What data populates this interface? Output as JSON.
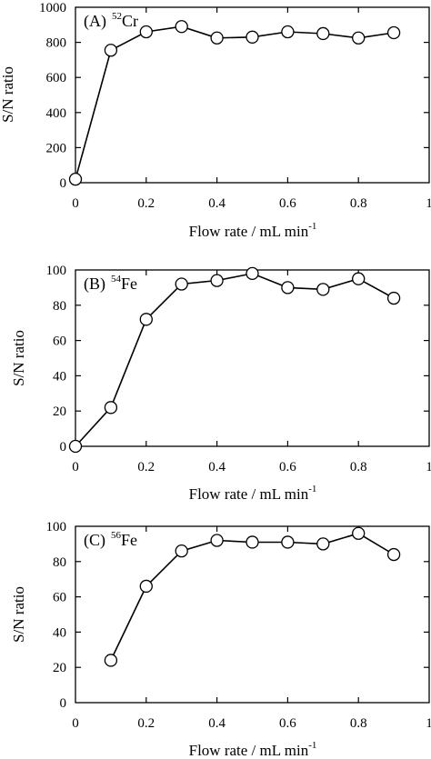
{
  "chart_data": [
    {
      "type": "line",
      "panel_label": "(A)",
      "isotope_mass": "52",
      "element": "Cr",
      "xlabel": "Flow rate  / mL min",
      "xlabel_exponent": "-1",
      "ylabel": "S/N ratio",
      "xlim": [
        0,
        1
      ],
      "ylim": [
        0,
        1000
      ],
      "x_ticks": [
        "0",
        "0.2",
        "0.4",
        "0.6",
        "0.8",
        "1"
      ],
      "y_ticks": [
        "0",
        "200",
        "400",
        "600",
        "800",
        "1000"
      ],
      "marker": "open-circle",
      "series": [
        {
          "x": [
            0,
            0.1,
            0.2,
            0.3,
            0.4,
            0.5,
            0.6,
            0.7,
            0.8,
            0.9
          ],
          "y": [
            20,
            755,
            860,
            890,
            825,
            830,
            860,
            850,
            825,
            855
          ]
        }
      ]
    },
    {
      "type": "line",
      "panel_label": "(B)",
      "isotope_mass": "54",
      "element": "Fe",
      "xlabel": "Flow rate / mL min",
      "xlabel_exponent": "-1",
      "ylabel": "S/N ratio",
      "xlim": [
        0,
        1
      ],
      "ylim": [
        0,
        100
      ],
      "x_ticks": [
        "0",
        "0.2",
        "0.4",
        "0.6",
        "0.8",
        "1"
      ],
      "y_ticks": [
        "0",
        "20",
        "40",
        "60",
        "80",
        "100"
      ],
      "marker": "open-circle",
      "series": [
        {
          "x": [
            0,
            0.1,
            0.2,
            0.3,
            0.4,
            0.5,
            0.6,
            0.7,
            0.8,
            0.9
          ],
          "y": [
            0,
            22,
            72,
            92,
            94,
            98,
            90,
            89,
            95,
            84
          ]
        }
      ]
    },
    {
      "type": "line",
      "panel_label": "(C)",
      "isotope_mass": "56",
      "element": "Fe",
      "xlabel": "Flow rate / mL min",
      "xlabel_exponent": "-1",
      "ylabel": "S/N ratio",
      "xlim": [
        0,
        1
      ],
      "ylim": [
        0,
        100
      ],
      "x_ticks": [
        "0",
        "0.2",
        "0.4",
        "0.6",
        "0.8",
        "1"
      ],
      "y_ticks": [
        "0",
        "20",
        "40",
        "60",
        "80",
        "100"
      ],
      "marker": "open-circle",
      "series": [
        {
          "x": [
            0.1,
            0.2,
            0.3,
            0.4,
            0.5,
            0.6,
            0.7,
            0.8,
            0.9
          ],
          "y": [
            24,
            66,
            86,
            92,
            91,
            91,
            90,
            96,
            84
          ]
        }
      ]
    }
  ]
}
